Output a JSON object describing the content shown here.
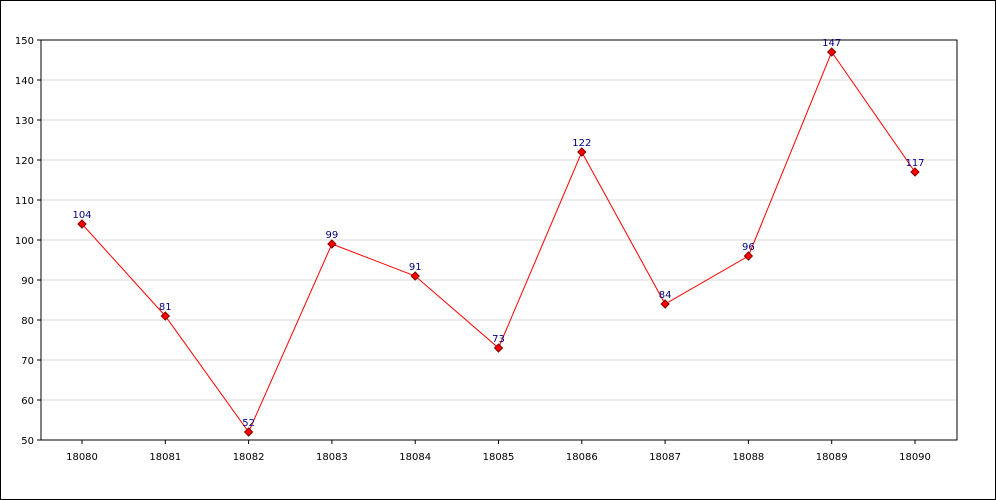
{
  "chart_data": {
    "type": "line",
    "title": "",
    "xlabel": "",
    "ylabel": "",
    "categories": [
      "18080",
      "18081",
      "18082",
      "18083",
      "18084",
      "18085",
      "18086",
      "18087",
      "18088",
      "18089",
      "18090"
    ],
    "series": [
      {
        "values": [
          104,
          81,
          52,
          99,
          91,
          73,
          122,
          84,
          96,
          147,
          117
        ]
      }
    ],
    "ylim": [
      50,
      150
    ],
    "yticks": [
      50,
      60,
      70,
      80,
      90,
      100,
      110,
      120,
      130,
      140,
      150
    ],
    "grid": "horizontal",
    "legend": "none",
    "colors": {
      "line": "#ff0000",
      "marker_fill": "#ff0000",
      "marker_stroke": "#800000",
      "data_label": "#000080",
      "grid": "#d8d8d8",
      "axis": "#000000"
    }
  }
}
